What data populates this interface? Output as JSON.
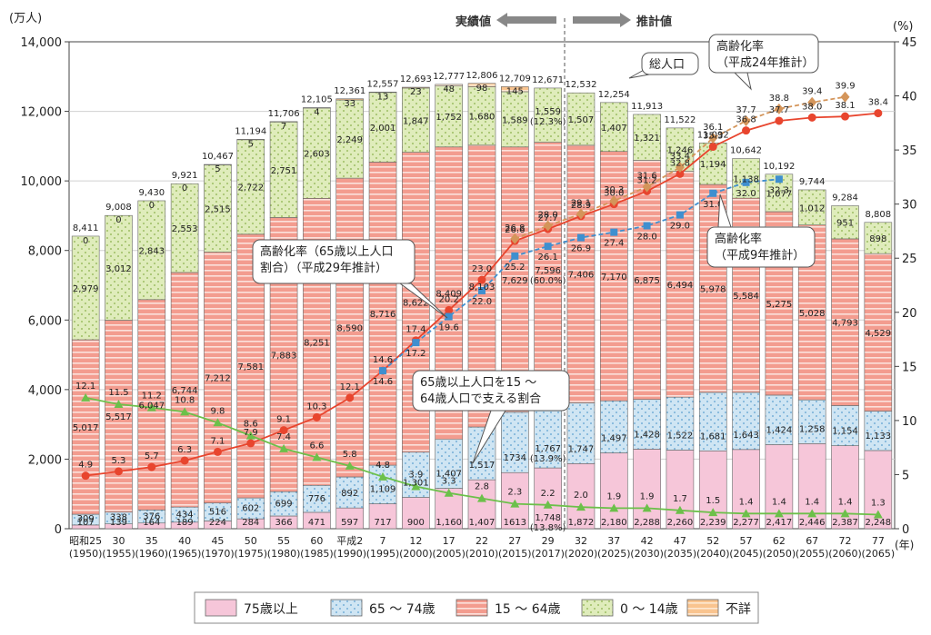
{
  "chart_data": {
    "type": "bar",
    "y_left_unit": "(万人)",
    "y_right_unit": "(%)",
    "x_unit": "(年)",
    "ylim_left": [
      0,
      14000
    ],
    "ylim_right": [
      0,
      45
    ],
    "y_left_ticks": [
      "0",
      "2,000",
      "4,000",
      "6,000",
      "8,000",
      "10,000",
      "12,000",
      "14,000"
    ],
    "y_right_ticks": [
      "0",
      "5",
      "10",
      "15",
      "20",
      "25",
      "30",
      "35",
      "40",
      "45"
    ],
    "period_labels": {
      "actual": "実績値",
      "projected": "推計値"
    },
    "categories": [
      {
        "era": "昭和25",
        "year": "(1950)"
      },
      {
        "era": "30",
        "year": "(1955)"
      },
      {
        "era": "35",
        "year": "(1960)"
      },
      {
        "era": "40",
        "year": "(1965)"
      },
      {
        "era": "45",
        "year": "(1970)"
      },
      {
        "era": "50",
        "year": "(1975)"
      },
      {
        "era": "55",
        "year": "(1980)"
      },
      {
        "era": "60",
        "year": "(1985)"
      },
      {
        "era": "平成2",
        "year": "(1990)"
      },
      {
        "era": "7",
        "year": "(1995)"
      },
      {
        "era": "12",
        "year": "(2000)"
      },
      {
        "era": "17",
        "year": "(2005)"
      },
      {
        "era": "22",
        "year": "(2010)"
      },
      {
        "era": "27",
        "year": "(2015)"
      },
      {
        "era": "29",
        "year": "(2017)"
      },
      {
        "era": "32",
        "year": "(2020)"
      },
      {
        "era": "37",
        "year": "(2025)"
      },
      {
        "era": "42",
        "year": "(2030)"
      },
      {
        "era": "47",
        "year": "(2035)"
      },
      {
        "era": "52",
        "year": "(2040)"
      },
      {
        "era": "57",
        "year": "(2045)"
      },
      {
        "era": "62",
        "year": "(2050)"
      },
      {
        "era": "67",
        "year": "(2055)"
      },
      {
        "era": "72",
        "year": "(2060)"
      },
      {
        "era": "77",
        "year": "(2065)"
      }
    ],
    "totals": [
      "8,411",
      "9,008",
      "9,430",
      "9,921",
      "10,467",
      "11,194",
      "11,706",
      "12,105",
      "12,361",
      "12,557",
      "12,693",
      "12,777",
      "12,806",
      "12,709",
      "12,671",
      "12,532",
      "12,254",
      "11,913",
      "11,522",
      "11,092",
      "10,642",
      "10,192",
      "9,744",
      "9,284",
      "8,808"
    ],
    "series": [
      {
        "name": "75歳以上",
        "color": "#f6c6d9",
        "values": [
          107,
          139,
          164,
          189,
          224,
          284,
          366,
          471,
          597,
          717,
          900,
          1160,
          1407,
          1613,
          1748,
          1872,
          2180,
          2288,
          2260,
          2239,
          2277,
          2417,
          2446,
          2387,
          2248
        ],
        "labels": [
          "107",
          "139",
          "164",
          "189",
          "224",
          "284",
          "366",
          "471",
          "597",
          "717",
          "900",
          "1,160",
          "1,407",
          "1613",
          "1,748\n(13.8%)",
          "1,872",
          "2,180",
          "2,288",
          "2,260",
          "2,239",
          "2,277",
          "2,417",
          "2,446",
          "2,387",
          "2,248"
        ]
      },
      {
        "name": "65 ～ 74歳",
        "color": "#c7e2f2",
        "values": [
          309,
          338,
          376,
          434,
          516,
          602,
          699,
          776,
          892,
          1109,
          1301,
          1407,
          1517,
          1734,
          1767,
          1747,
          1497,
          1428,
          1522,
          1681,
          1643,
          1424,
          1258,
          1154,
          1133
        ],
        "labels": [
          "309",
          "338",
          "376",
          "434",
          "516",
          "602",
          "699",
          "776",
          "892",
          "1,109",
          "1,301",
          "1,407",
          "1,517",
          "1734",
          "1,767\n(13.9%)",
          "1,747",
          "1,497",
          "1,428",
          "1,522",
          "1,681",
          "1,643",
          "1,424",
          "1,258",
          "1,154",
          "1,133"
        ]
      },
      {
        "name": "15 ～ 64歳",
        "color": "#f4a79a",
        "values": [
          5017,
          5517,
          6047,
          6744,
          7212,
          7581,
          7883,
          8251,
          8590,
          8716,
          8622,
          8409,
          8103,
          7629,
          7596,
          7406,
          7170,
          6875,
          6494,
          5978,
          5584,
          5275,
          5028,
          4793,
          4529
        ],
        "labels": [
          "5,017",
          "5,517",
          "6,047",
          "6,744",
          "7,212",
          "7,581",
          "7,883",
          "8,251",
          "8,590",
          "8,716",
          "8,622",
          "8,409",
          "8,103",
          "7,629",
          "7,596\n(60.0%)",
          "7,406",
          "7,170",
          "6,875",
          "6,494",
          "5,978",
          "5,584",
          "5,275",
          "5,028",
          "4,793",
          "4,529"
        ]
      },
      {
        "name": "0 ～ 14歳",
        "color": "#dde9b6",
        "values": [
          2979,
          3012,
          2843,
          2553,
          2515,
          2722,
          2751,
          2603,
          2249,
          2001,
          1847,
          1752,
          1680,
          1589,
          1559,
          1507,
          1407,
          1321,
          1246,
          1194,
          1138,
          1077,
          1012,
          951,
          898
        ],
        "labels": [
          "2,979",
          "3,012",
          "2,843",
          "2,553",
          "2,515",
          "2,722",
          "2,751",
          "2,603",
          "2,249",
          "2,001",
          "1,847",
          "1,752",
          "1,680",
          "1,589",
          "1,559\n(12.3%)",
          "1,507",
          "1,407",
          "1,321",
          "1,246",
          "1,194",
          "1,138",
          "1,077",
          "1,012",
          "951",
          "898"
        ]
      },
      {
        "name": "不詳",
        "color": "#fcd6b0",
        "values": [
          0,
          0,
          0,
          0,
          5,
          5,
          7,
          4,
          33,
          13,
          23,
          48,
          98,
          145,
          null,
          null,
          null,
          null,
          null,
          null,
          null,
          null,
          null,
          null,
          null
        ],
        "labels": [
          "0",
          "0",
          "0",
          "0",
          "5",
          "5",
          "7",
          "4",
          "33",
          "13",
          "23",
          "48",
          "98",
          "145",
          "",
          "",
          "",
          "",
          "",
          "",
          "",
          "",
          "",
          "",
          ""
        ]
      }
    ],
    "lines": [
      {
        "name": "高齢化率（65歳以上人口割合）（平成29年推計）",
        "color": "#e8452e",
        "marker": "circle",
        "values": [
          4.9,
          5.3,
          5.7,
          6.3,
          7.1,
          7.9,
          9.1,
          10.3,
          12.1,
          14.6,
          17.4,
          20.2,
          23.0,
          26.6,
          27.7,
          28.9,
          30.0,
          31.2,
          32.8,
          35.3,
          36.8,
          37.7,
          38.0,
          38.1,
          38.4
        ],
        "labels": [
          "4.9",
          "5.3",
          "5.7",
          "6.3",
          "7.1",
          "7.9",
          "9.1",
          "10.3",
          "12.1",
          "14.6",
          "17.4",
          "20.2",
          "23.0",
          "26.6",
          "27.7",
          "28.9",
          "30.0",
          "31.2",
          "32.8",
          "35.3",
          "36.8",
          "37.7",
          "38.0",
          "38.1",
          "38.4"
        ]
      },
      {
        "name": "65歳以上人口を15～64歳人口で支える割合",
        "color": "#6cc04a",
        "marker": "triangle",
        "values": [
          12.1,
          11.5,
          11.2,
          10.8,
          9.8,
          8.6,
          7.4,
          6.6,
          5.8,
          4.8,
          3.9,
          3.3,
          2.8,
          2.3,
          2.2,
          2.0,
          1.9,
          1.9,
          1.7,
          1.5,
          1.4,
          1.4,
          1.4,
          1.4,
          1.3
        ],
        "labels": [
          "12.1",
          "11.5",
          "11.2",
          "10.8",
          "9.8",
          "8.6",
          "7.4",
          "6.6",
          "5.8",
          "4.8",
          "3.9",
          "3.3",
          "2.8",
          "2.3",
          "2.2",
          "2.0",
          "1.9",
          "1.9",
          "1.7",
          "1.5",
          "1.4",
          "1.4",
          "1.4",
          "1.4",
          "1.3"
        ]
      },
      {
        "name": "高齢化率（平成24年推計）",
        "color": "#d4955a",
        "marker": "diamond",
        "dashed": true,
        "values": [
          null,
          null,
          null,
          null,
          null,
          null,
          null,
          null,
          null,
          null,
          null,
          null,
          null,
          26.8,
          28.0,
          29.1,
          30.3,
          31.6,
          33.4,
          36.1,
          37.7,
          38.8,
          39.4,
          39.9,
          null
        ],
        "labels": [
          "",
          "",
          "",
          "",
          "",
          "",
          "",
          "",
          "",
          "",
          "",
          "",
          "",
          "26.8",
          "28.0",
          "29.1",
          "30.3",
          "31.6",
          "33.4",
          "36.1",
          "37.7",
          "38.8",
          "39.4",
          "39.9",
          ""
        ]
      },
      {
        "name": "高齢化率（平成9年推計）",
        "color": "#3f8fcf",
        "marker": "square",
        "dashed": true,
        "values": [
          null,
          null,
          null,
          null,
          null,
          null,
          null,
          null,
          null,
          14.6,
          17.2,
          19.6,
          22.0,
          25.2,
          26.1,
          26.9,
          27.4,
          28.0,
          29.0,
          31.0,
          32.0,
          32.3,
          null,
          null,
          null
        ],
        "labels": [
          "",
          "",
          "",
          "",
          "",
          "",
          "",
          "",
          "",
          "14.6",
          "17.2",
          "19.6",
          "22.0",
          "25.2",
          "26.1",
          "26.9",
          "27.4",
          "28.0",
          "29.0",
          "31.0",
          "32.0",
          "32.3",
          "",
          "",
          ""
        ]
      }
    ],
    "callouts": [
      {
        "name": "total",
        "text": [
          "総人口"
        ]
      },
      {
        "name": "h24",
        "text": [
          "高齢化率",
          "（平成24年推計）"
        ]
      },
      {
        "name": "h29",
        "text": [
          "高齢化率（65歳以上人口",
          "割合）（平成29年推計）"
        ]
      },
      {
        "name": "h9",
        "text": [
          "高齢化率",
          "（平成9年推計）"
        ]
      },
      {
        "name": "support",
        "text": [
          "65歳以上人口を15 ～",
          "64歳人口で支える割合"
        ]
      }
    ],
    "legend": {
      "placement": "bottom",
      "items": [
        "75歳以上",
        "65 ～ 74歳",
        "15 ～ 64歳",
        "0 ～ 14歳",
        "不詳"
      ]
    }
  }
}
